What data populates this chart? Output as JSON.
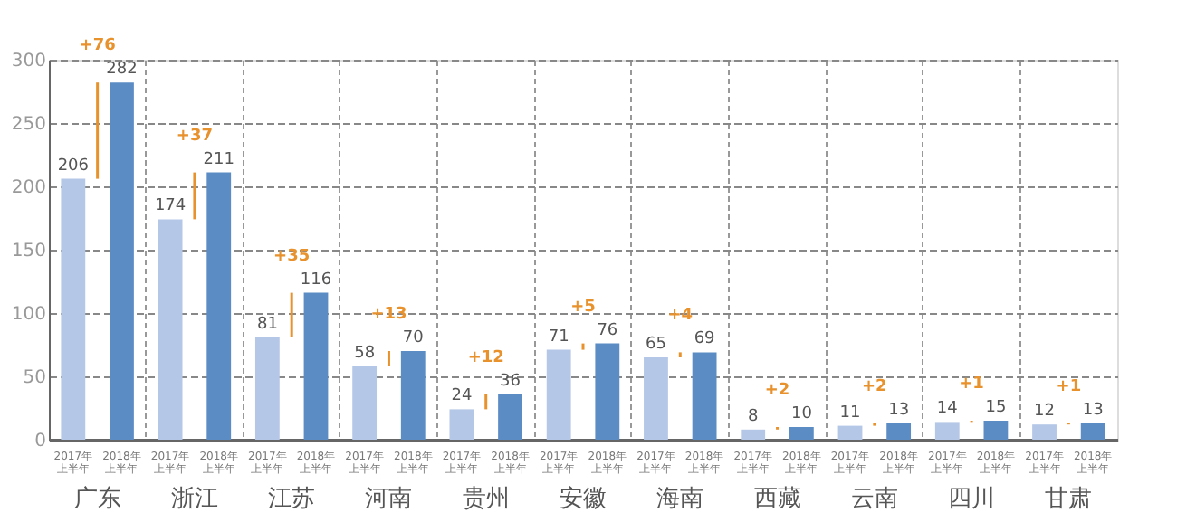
{
  "chart_data": {
    "type": "bar",
    "categories": [
      "广东",
      "浙江",
      "江苏",
      "河南",
      "贵州",
      "安徽",
      "海南",
      "西藏",
      "云南",
      "四川",
      "甘肃"
    ],
    "series": [
      {
        "name": "2017年上半年",
        "color": "#b4c7e7",
        "values": [
          206,
          174,
          81,
          58,
          24,
          71,
          65,
          8,
          11,
          14,
          12
        ]
      },
      {
        "name": "2018年上半年",
        "color": "#5b8cc4",
        "values": [
          282,
          211,
          116,
          70,
          36,
          76,
          69,
          10,
          13,
          15,
          13
        ]
      }
    ],
    "ylim": [
      0,
      300
    ],
    "yticks": [
      0,
      50,
      100,
      150,
      200,
      250,
      300
    ],
    "grid": true,
    "data_labels": true,
    "annotations": [
      "+76",
      "+37",
      "+35",
      "+13",
      "+12",
      "+5",
      "+4",
      "+2",
      "+2",
      "+1",
      "+1"
    ]
  }
}
